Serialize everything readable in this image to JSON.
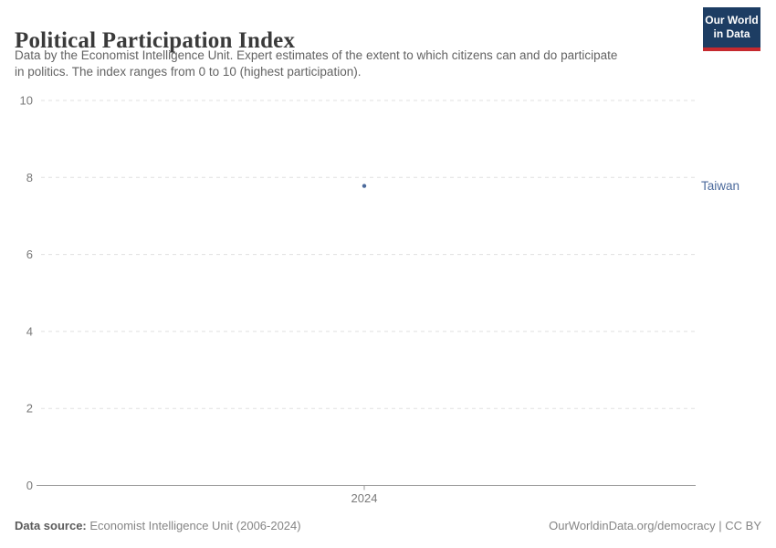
{
  "header": {
    "title": "Political Participation Index",
    "subtitle": "Data by the Economist Intelligence Unit. Expert estimates of the extent to which citizens can and do participate\nin politics. The index ranges from 0 to 10 (highest participation).",
    "logo": {
      "line1": "Our World",
      "line2": "in Data"
    }
  },
  "chart_data": {
    "type": "scatter",
    "title": "Political Participation Index",
    "x": [
      2024
    ],
    "series": [
      {
        "name": "Taiwan",
        "values": [
          7.78
        ],
        "color": "#4c6a9c"
      }
    ],
    "xticks": [
      "2024"
    ],
    "yticks": [
      0,
      2,
      4,
      6,
      8,
      10
    ],
    "ylim": [
      0,
      10
    ],
    "xlabel": "",
    "ylabel": "",
    "grid": "horizontal-dashed",
    "legend": "entity-label-right"
  },
  "colors": {
    "logo_bg": "#1d3d63",
    "logo_stripe": "#c5292e",
    "gridline": "#e0e0e0",
    "axis": "#999999",
    "tick_label": "#7a7a7a",
    "series": "#4c6a9c"
  },
  "footer": {
    "source_label": "Data source:",
    "source_text": " Economist Intelligence Unit (2006-2024)",
    "credit": "OurWorldinData.org/democracy | CC BY"
  }
}
